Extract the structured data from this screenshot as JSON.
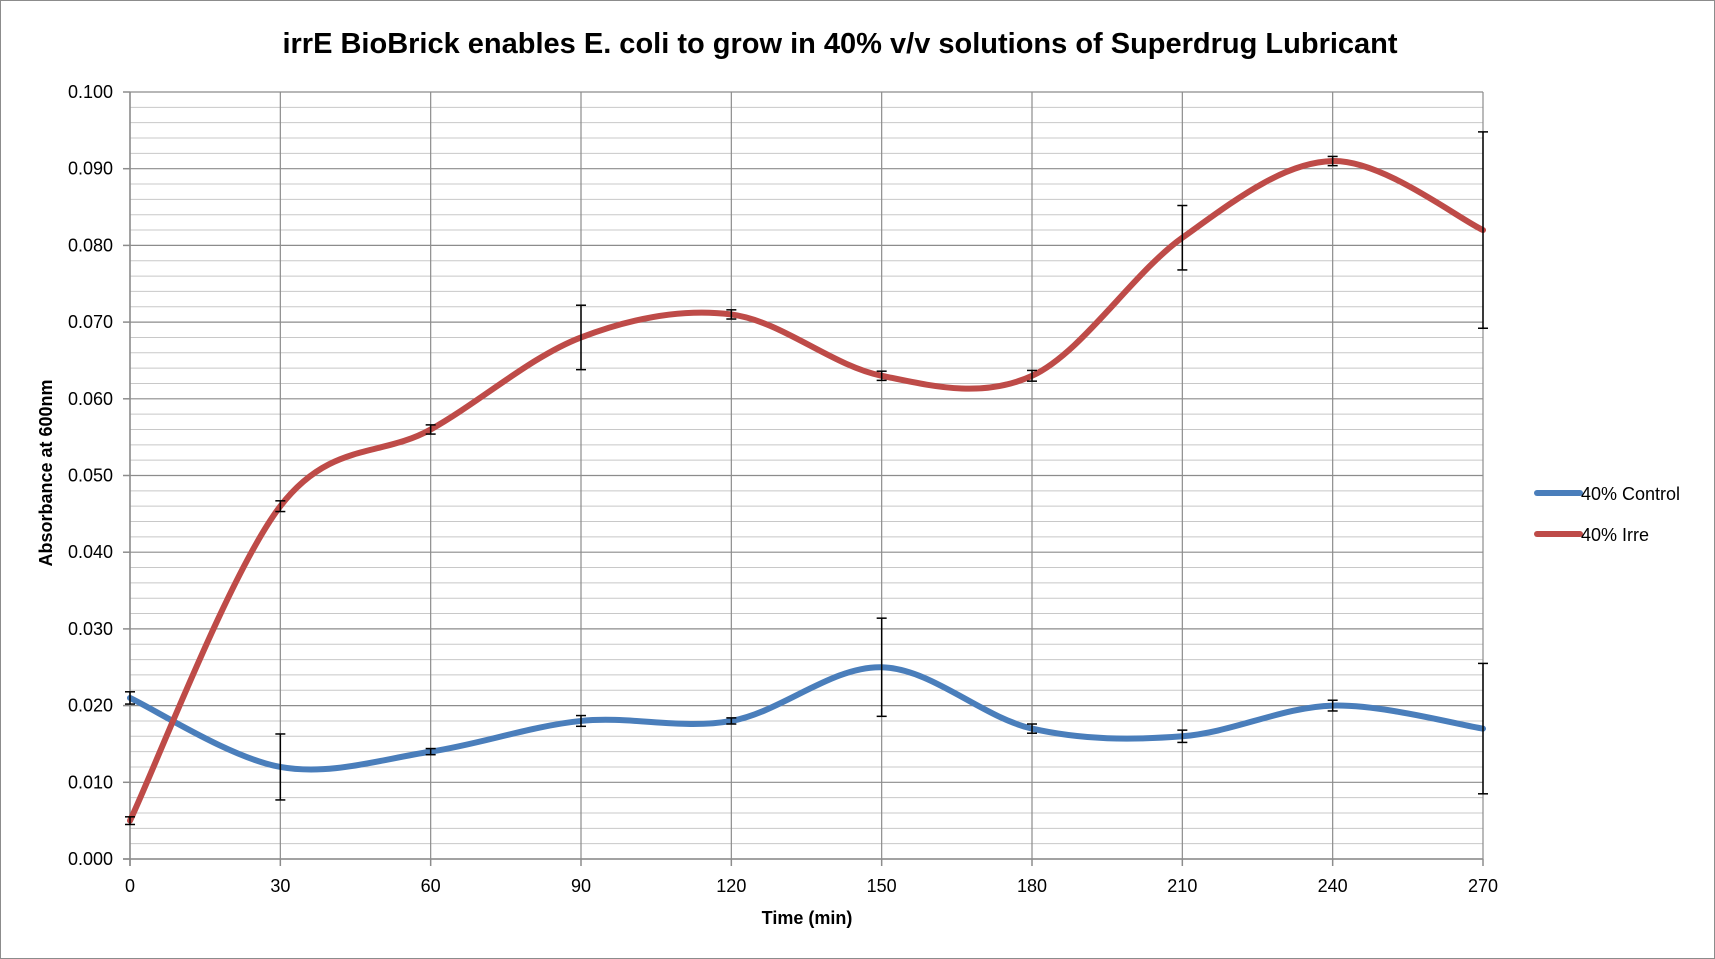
{
  "chart_data": {
    "type": "line",
    "title": "irrE BioBrick enables E. coli to grow in 40% v/v solutions of Superdrug Lubricant",
    "xlabel": "Time (min)",
    "ylabel": "Absorbance at 600nm",
    "x": [
      0,
      30,
      60,
      90,
      120,
      150,
      180,
      210,
      240,
      270
    ],
    "xlim": [
      0,
      270
    ],
    "ylim": [
      0,
      0.1
    ],
    "x_ticks": [
      "0",
      "30",
      "60",
      "90",
      "120",
      "150",
      "180",
      "210",
      "240",
      "270"
    ],
    "y_ticks": [
      "0.000",
      "0.010",
      "0.020",
      "0.030",
      "0.040",
      "0.050",
      "0.060",
      "0.070",
      "0.080",
      "0.090",
      "0.100"
    ],
    "grid": true,
    "smooth": true,
    "legend": {
      "position": "right"
    },
    "series": [
      {
        "name": "40% Control",
        "color": "#4a7ebb",
        "values": [
          0.021,
          0.012,
          0.014,
          0.018,
          0.018,
          0.025,
          0.017,
          0.016,
          0.02,
          0.017
        ],
        "errors": [
          0.0008,
          0.0043,
          0.0004,
          0.0007,
          0.0004,
          0.0064,
          0.0006,
          0.0008,
          0.0007,
          0.0085
        ]
      },
      {
        "name": "40% Irre",
        "color": "#be4b48",
        "values": [
          0.005,
          0.046,
          0.056,
          0.068,
          0.071,
          0.063,
          0.063,
          0.081,
          0.091,
          0.082
        ],
        "errors": [
          0.0005,
          0.0007,
          0.0006,
          0.0042,
          0.0006,
          0.0006,
          0.0007,
          0.0042,
          0.0006,
          0.0128
        ]
      }
    ]
  }
}
